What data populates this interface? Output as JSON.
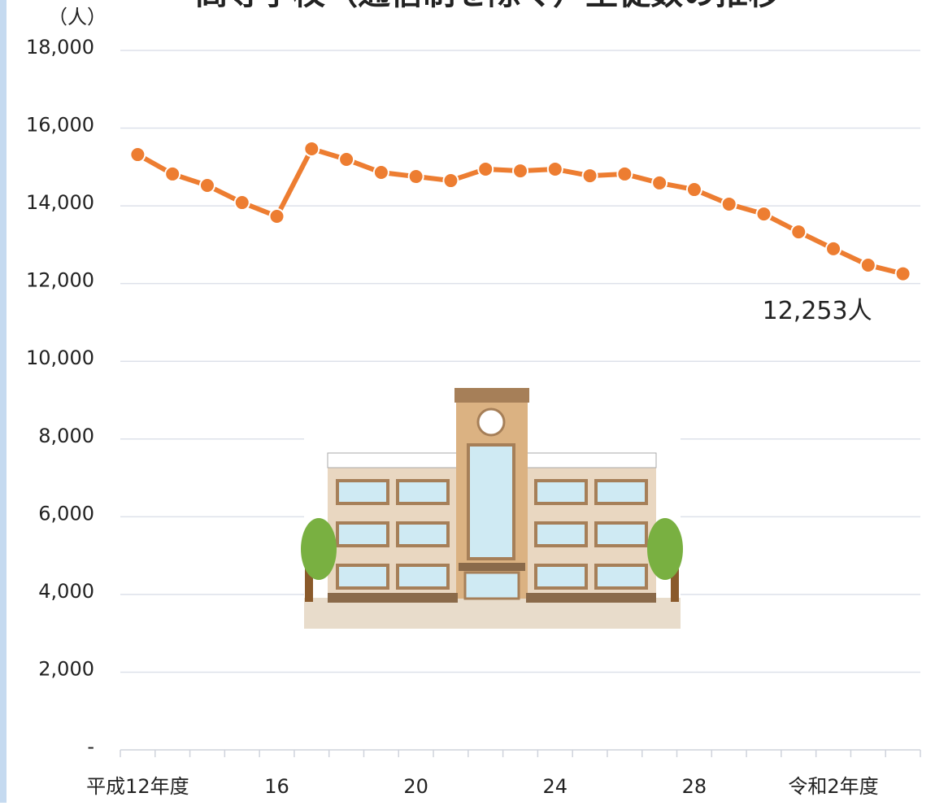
{
  "chart_data": {
    "type": "line",
    "title": "高等学校（通信制を除く）生徒数の推移",
    "y_unit": "（人）",
    "categories": [
      "平成12年度",
      null,
      null,
      null,
      "16",
      null,
      null,
      null,
      "20",
      null,
      null,
      null,
      "24",
      null,
      null,
      null,
      "28",
      null,
      null,
      null,
      "令和2年度",
      null,
      null
    ],
    "series": [
      {
        "color": "#ed7d31",
        "values": [
          15320,
          14820,
          14525,
          14085,
          13730,
          15467,
          15195,
          14860,
          14755,
          14650,
          14945,
          14900,
          14945,
          14775,
          14820,
          14590,
          14420,
          14045,
          13790,
          13330,
          12895,
          12475,
          12253
        ],
        "value_labels": [
          null,
          null,
          null,
          null,
          null,
          null,
          null,
          null,
          null,
          null,
          null,
          null,
          null,
          null,
          null,
          null,
          null,
          null,
          null,
          null,
          null,
          null,
          "12,253人"
        ]
      }
    ],
    "ylim": [
      0,
      18000
    ],
    "yticks": [
      {
        "value": 0,
        "label": "-"
      },
      {
        "value": 2000,
        "label": "2,000"
      },
      {
        "value": 4000,
        "label": "4,000"
      },
      {
        "value": 6000,
        "label": "6,000"
      },
      {
        "value": 8000,
        "label": "8,000"
      },
      {
        "value": 10000,
        "label": "10,000"
      },
      {
        "value": 12000,
        "label": "12,000"
      },
      {
        "value": 14000,
        "label": "14,000"
      },
      {
        "value": 16000,
        "label": "16,000"
      },
      {
        "value": 18000,
        "label": "18,000"
      }
    ],
    "grid": true
  }
}
